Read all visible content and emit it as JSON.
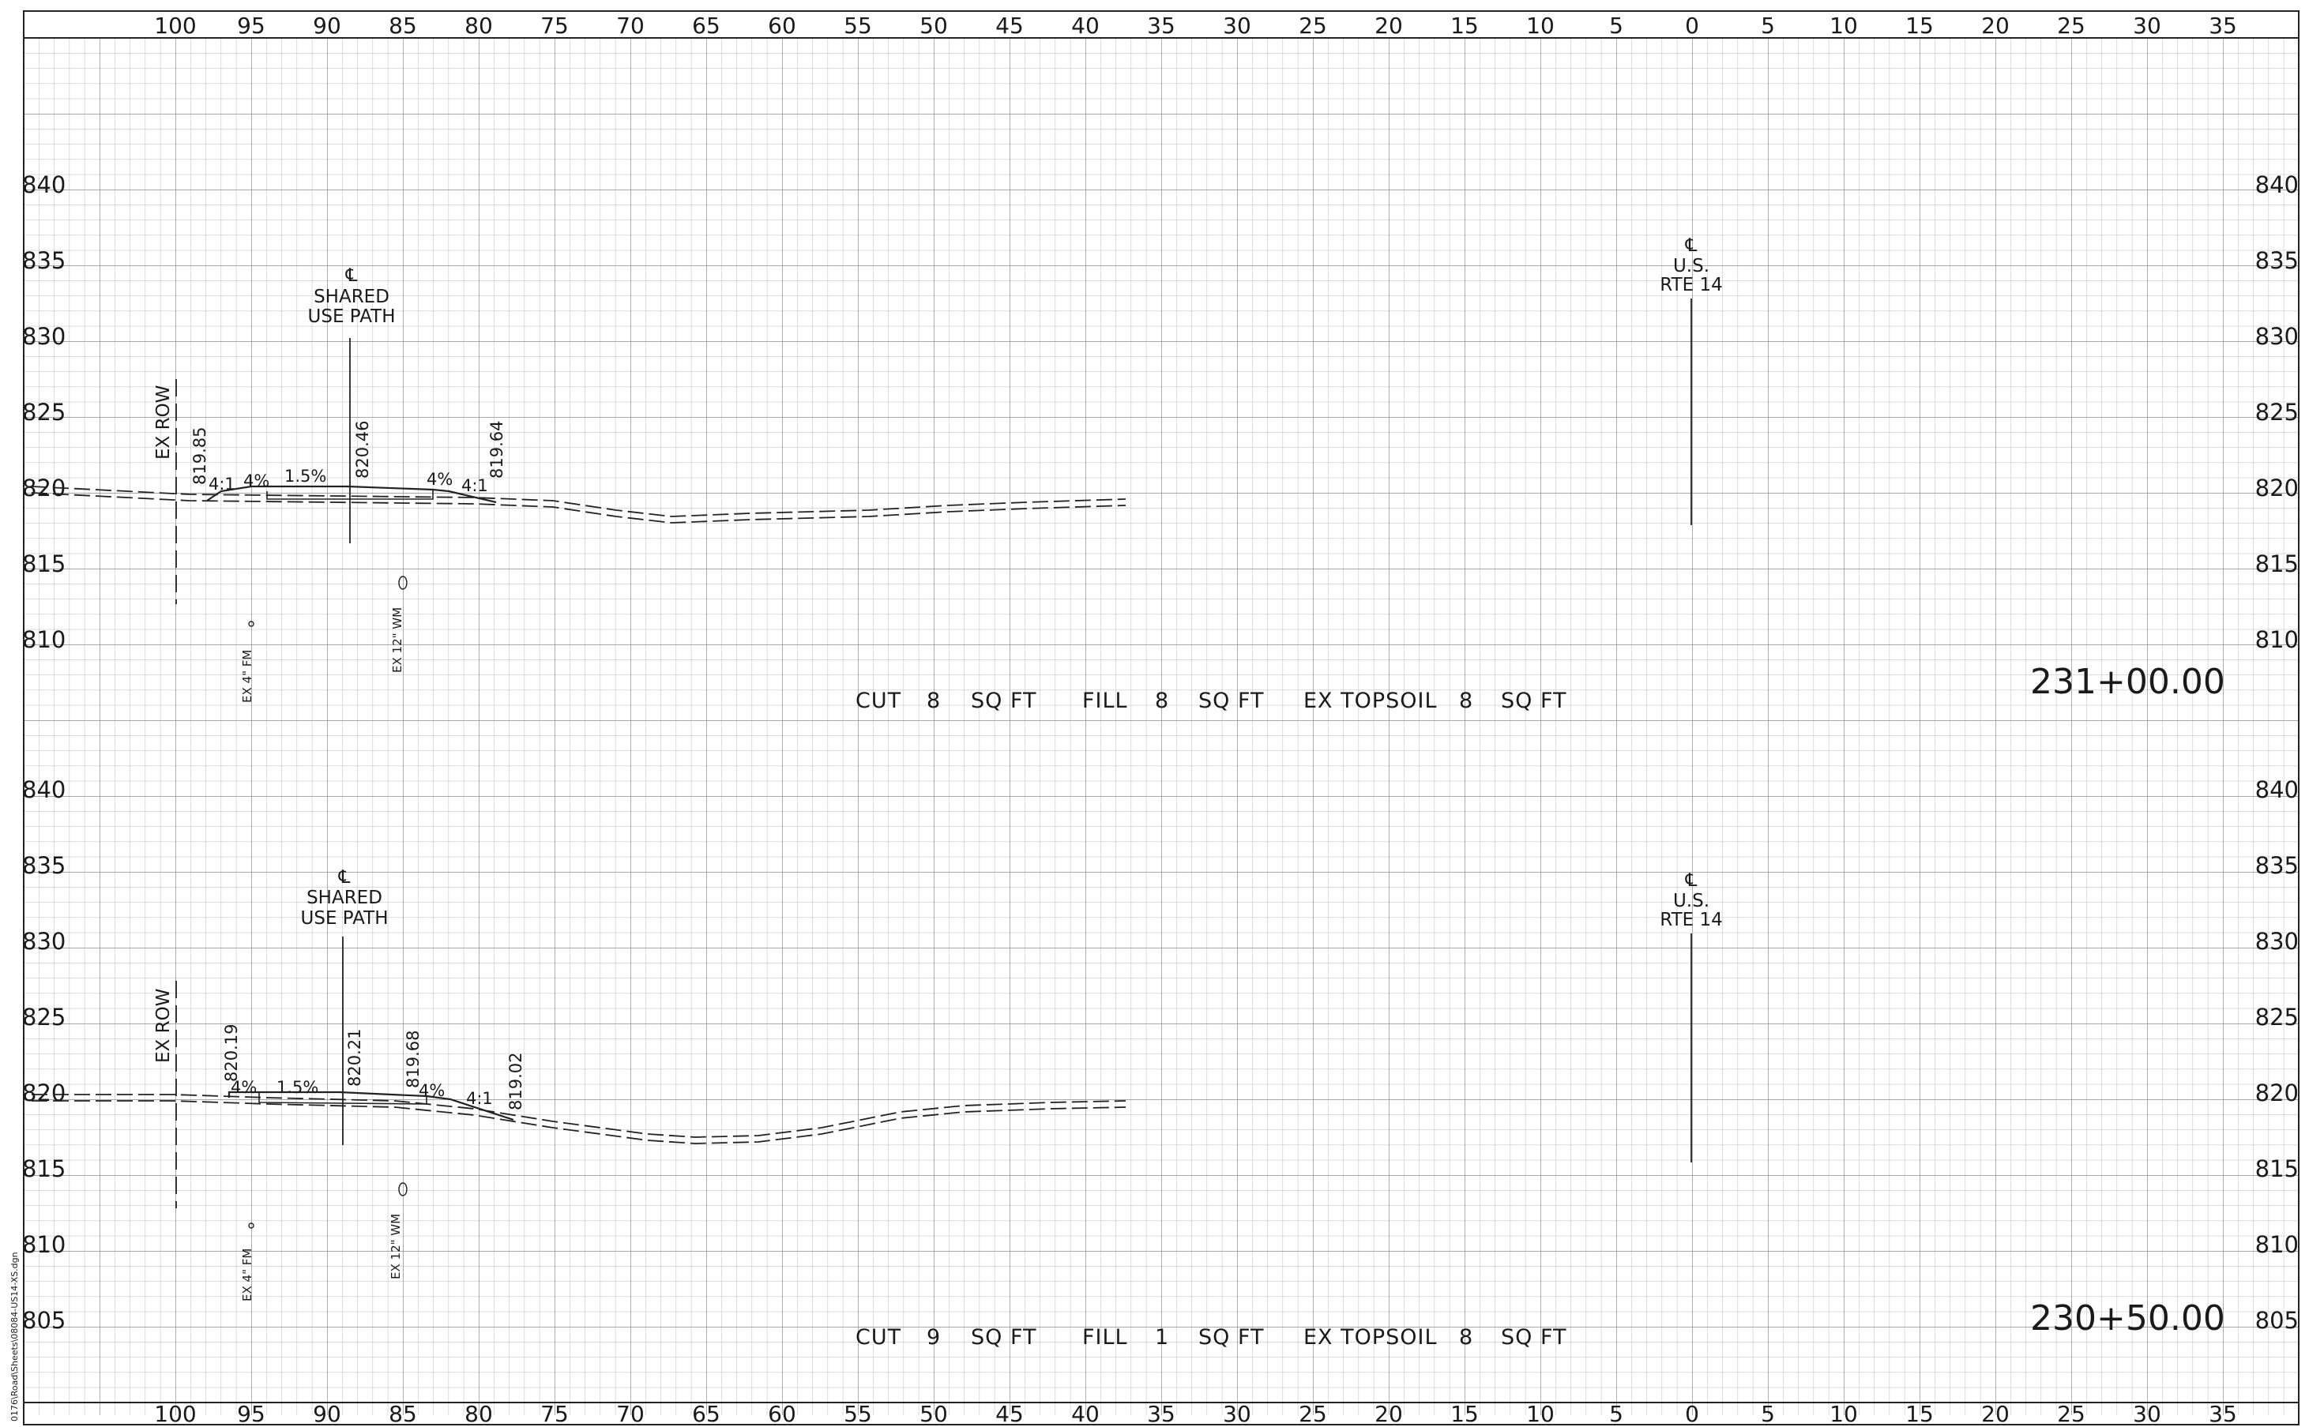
{
  "top_scale": [
    "100",
    "95",
    "90",
    "85",
    "80",
    "75",
    "70",
    "65",
    "60",
    "55",
    "50",
    "45",
    "40",
    "35",
    "30",
    "25",
    "20",
    "15",
    "10",
    "5",
    "0",
    "5",
    "10",
    "15",
    "20",
    "25",
    "30",
    "35"
  ],
  "bottom_scale": [
    "100",
    "95",
    "90",
    "85",
    "80",
    "75",
    "70",
    "65",
    "60",
    "55",
    "50",
    "45",
    "40",
    "35",
    "30",
    "25",
    "20",
    "15",
    "10",
    "5",
    "0",
    "5",
    "10",
    "15",
    "20",
    "25",
    "30",
    "35"
  ],
  "file_path": "0176\\Road\\Sheets\\08084-US14-XS.dgn",
  "sections": [
    {
      "station": "231+00.00",
      "elevation_labels": [
        "840",
        "835",
        "830",
        "825",
        "820",
        "815",
        "810"
      ],
      "centerline_path": {
        "symbol": "℄",
        "lines": [
          "SHARED",
          "USE PATH"
        ]
      },
      "centerline_route": {
        "symbol": "℄",
        "lines": [
          "U.S.",
          "RTE 14"
        ]
      },
      "ex_row": "EX ROW",
      "elevations": [
        "819.85",
        "820.46",
        "819.64"
      ],
      "slopes": [
        "4:1",
        "4%",
        "1.5%",
        "4%",
        "4:1"
      ],
      "utilities": [
        "EX 4\" FM",
        "EX 12\" WM"
      ],
      "quantities": {
        "cut_label": "CUT",
        "cut_value": "8",
        "fill_label": "FILL",
        "fill_value": "8",
        "topsoil_label": "EX TOPSOIL",
        "topsoil_value": "8",
        "unit": "SQ FT"
      }
    },
    {
      "station": "230+50.00",
      "elevation_labels": [
        "840",
        "835",
        "830",
        "825",
        "820",
        "815",
        "810",
        "805"
      ],
      "centerline_path": {
        "symbol": "℄",
        "lines": [
          "SHARED",
          "USE PATH"
        ]
      },
      "centerline_route": {
        "symbol": "℄",
        "lines": [
          "U.S.",
          "RTE 14"
        ]
      },
      "ex_row": "EX ROW",
      "elevations": [
        "820.19",
        "820.21",
        "819.68",
        "819.02"
      ],
      "slopes": [
        "4%",
        "1.5%",
        "4%",
        "4:1"
      ],
      "utilities": [
        "EX 4\" FM",
        "EX 12\" WM"
      ],
      "quantities": {
        "cut_label": "CUT",
        "cut_value": "9",
        "fill_label": "FILL",
        "fill_value": "1",
        "topsoil_label": "EX TOPSOIL",
        "topsoil_value": "8",
        "unit": "SQ FT"
      }
    }
  ]
}
